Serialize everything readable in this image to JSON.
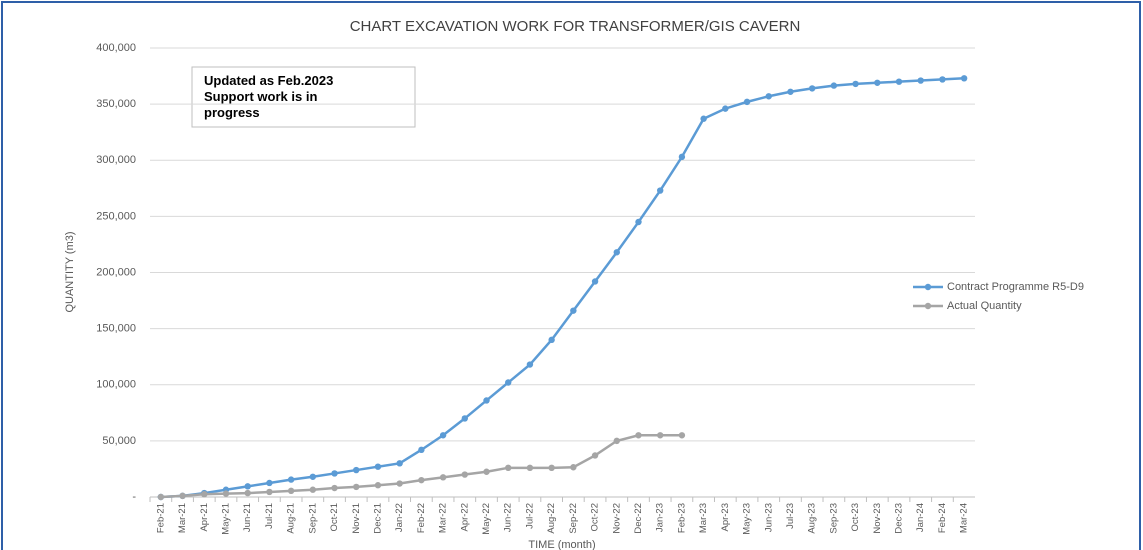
{
  "chart_data": {
    "type": "line",
    "title": "CHART EXCAVATION WORK FOR TRANSFORMER/GIS CAVERN",
    "annotation": [
      "Updated as Feb.2023",
      "Support work is in",
      "progress"
    ],
    "x_label": "TIME (month)",
    "y_label": "QUANTITY (m3)",
    "categories": [
      "Feb-21",
      "Mar-21",
      "Apr-21",
      "May-21",
      "Jun-21",
      "Jul-21",
      "Aug-21",
      "Sep-21",
      "Oct-21",
      "Nov-21",
      "Dec-21",
      "Jan-22",
      "Feb-22",
      "Mar-22",
      "Apr-22",
      "May-22",
      "Jun-22",
      "Jul-22",
      "Aug-22",
      "Sep-22",
      "Oct-22",
      "Nov-22",
      "Dec-22",
      "Jan-23",
      "Feb-23",
      "Mar-23",
      "Apr-23",
      "May-23",
      "Jun-23",
      "Jul-23",
      "Aug-23",
      "Sep-23",
      "Oct-23",
      "Nov-23",
      "Dec-23",
      "Jan-24",
      "Feb-24",
      "Mar-24"
    ],
    "series": [
      {
        "name": "Contract Programme R5-D9",
        "color": "#5b9bd5",
        "values": [
          0,
          1000,
          3500,
          6500,
          9500,
          12500,
          15500,
          18000,
          21000,
          24000,
          27000,
          30000,
          42000,
          55000,
          70000,
          86000,
          102000,
          118000,
          140000,
          166000,
          192000,
          218000,
          245000,
          273000,
          303000,
          337000,
          346000,
          352000,
          357000,
          361000,
          364000,
          366500,
          368000,
          369000,
          370000,
          371000,
          372000,
          373000
        ]
      },
      {
        "name": "Actual Quantity",
        "color": "#a5a5a5",
        "values": [
          0,
          1000,
          2500,
          3000,
          3500,
          4500,
          5500,
          6500,
          8000,
          9000,
          10500,
          12000,
          15000,
          17500,
          20000,
          22500,
          26000,
          26000,
          26000,
          26500,
          37000,
          50000,
          55000,
          55000,
          55000,
          null,
          null,
          null,
          null,
          null,
          null,
          null,
          null,
          null,
          null,
          null,
          null,
          null
        ]
      }
    ],
    "ylim": [
      0,
      400000
    ],
    "yticks": [
      {
        "value": 0,
        "label": "-"
      },
      {
        "value": 50000,
        "label": "50,000"
      },
      {
        "value": 100000,
        "label": "100,000"
      },
      {
        "value": 150000,
        "label": "150,000"
      },
      {
        "value": 200000,
        "label": "200,000"
      },
      {
        "value": 250000,
        "label": "250,000"
      },
      {
        "value": 300000,
        "label": "300,000"
      },
      {
        "value": 350000,
        "label": "350,000"
      },
      {
        "value": 400000,
        "label": "400,000"
      }
    ],
    "grid": true,
    "legend": "right"
  }
}
